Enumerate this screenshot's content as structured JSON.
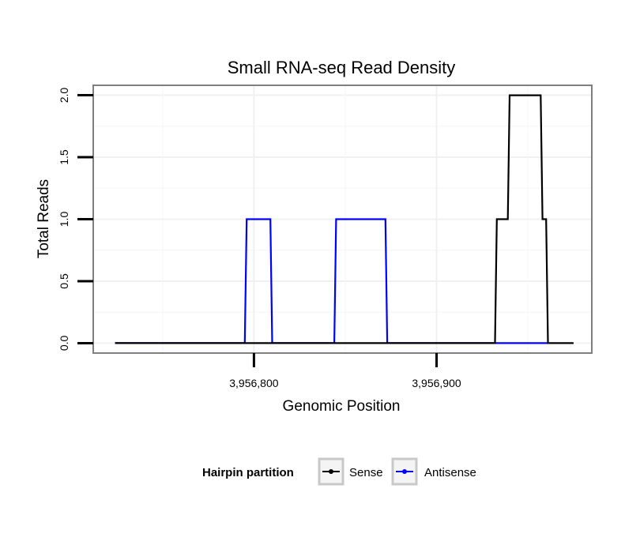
{
  "chart_data": {
    "type": "line",
    "title": "Small RNA-seq Read Density",
    "xlabel": "Genomic Position",
    "ylabel": "Total Reads",
    "xlim": [
      3956712,
      3956985
    ],
    "ylim": [
      -0.08,
      2.08
    ],
    "x_ticks": [
      3956800,
      3956900
    ],
    "x_tick_labels": [
      "3,956,800",
      "3,956,900"
    ],
    "y_ticks": [
      0,
      0.5,
      1,
      1.5,
      2
    ],
    "y_tick_labels": [
      "0.0",
      "0.5",
      "1.0",
      "1.5",
      "2.0"
    ],
    "grid": true,
    "legend": {
      "title": "Hairpin partition",
      "position": "bottom",
      "entries": [
        {
          "name": "Sense",
          "color": "#000000"
        },
        {
          "name": "Antisense",
          "color": "#0000ff"
        }
      ]
    },
    "series": [
      {
        "name": "Sense",
        "color": "#000000",
        "x": [
          3956724,
          3956932,
          3956933,
          3956939,
          3956940,
          3956957,
          3956958,
          3956960,
          3956961,
          3956975
        ],
        "y": [
          0,
          0,
          1,
          1,
          2,
          2,
          1,
          1,
          0,
          0
        ]
      },
      {
        "name": "Antisense",
        "color": "#0000ff",
        "x": [
          3956724,
          3956795,
          3956796,
          3956809,
          3956810,
          3956844,
          3956845,
          3956872,
          3956873,
          3956932,
          3956933,
          3956961
        ],
        "y": [
          0,
          0,
          1,
          1,
          0,
          0,
          1,
          1,
          0,
          0,
          0,
          0
        ]
      }
    ]
  }
}
